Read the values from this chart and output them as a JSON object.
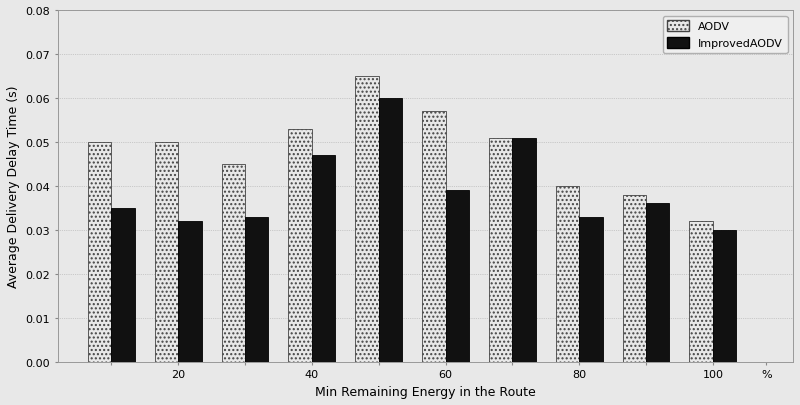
{
  "groups": [
    1,
    2,
    3,
    4,
    5,
    6,
    7,
    8,
    9,
    10
  ],
  "aodv_values": [
    0.05,
    0.05,
    0.045,
    0.053,
    0.065,
    0.057,
    0.051,
    0.04,
    0.038,
    0.032
  ],
  "improved_aodv_values": [
    0.035,
    0.032,
    0.033,
    0.047,
    0.06,
    0.039,
    0.051,
    0.033,
    0.036,
    0.03
  ],
  "xlabel": "Min Remaining Energy in the Route",
  "ylabel": "Average Delivery Delay Time (s)",
  "ylim": [
    0.0,
    0.08
  ],
  "yticks": [
    0.0,
    0.01,
    0.02,
    0.03,
    0.04,
    0.05,
    0.06,
    0.07,
    0.08
  ],
  "bar_width": 0.35,
  "aodv_color": "#e8e8e8",
  "improved_aodv_color": "#111111",
  "aodv_label": "AODV",
  "improved_label": "ImprovedAODV",
  "legend_loc": "upper right",
  "background_color": "#e8e8e8",
  "figsize": [
    8.0,
    4.06
  ],
  "dpi": 100
}
